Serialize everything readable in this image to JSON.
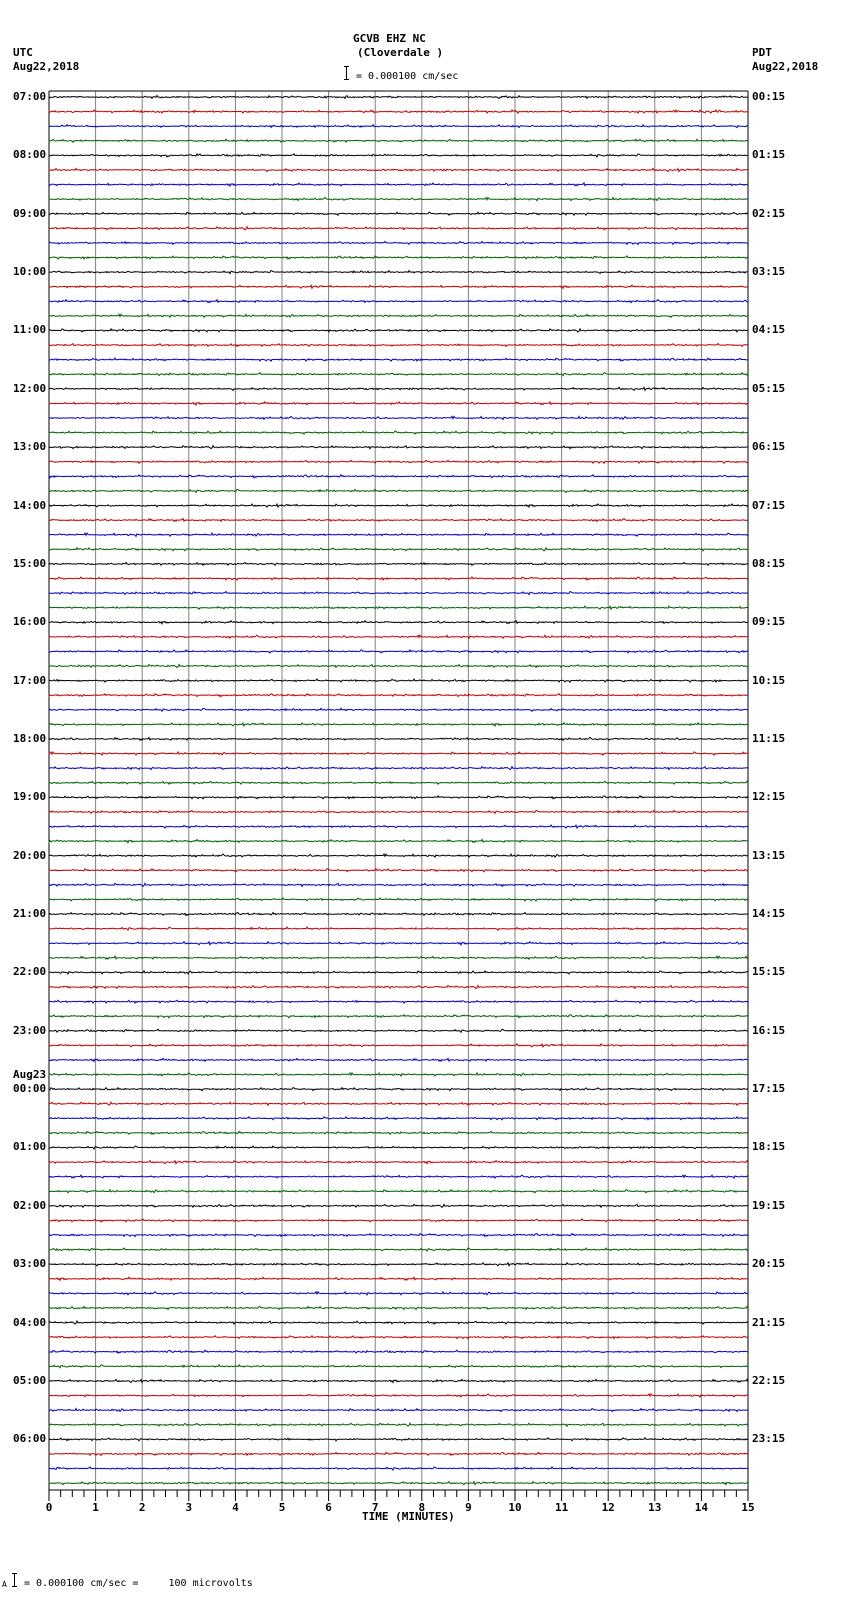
{
  "header": {
    "station": "GCVB EHZ NC",
    "location": "(Cloverdale )",
    "scale_text": "= 0.000100 cm/sec",
    "left_tz": "UTC",
    "left_date": "Aug22,2018",
    "right_tz": "PDT",
    "right_date": "Aug22,2018"
  },
  "footer": {
    "scale_text": "= 0.000100 cm/sec =     100 microvolts",
    "prefix": "A"
  },
  "chart_data": {
    "type": "line",
    "title": "GCVB EHZ NC (Cloverdale )",
    "subtitle": "Helicorder seismogram, 24 hours, 15-minute lines",
    "xlabel": "TIME (MINUTES)",
    "ylabel": "",
    "xlim": [
      0,
      15
    ],
    "x_ticks": [
      0,
      1,
      2,
      3,
      4,
      5,
      6,
      7,
      8,
      9,
      10,
      11,
      12,
      13,
      14,
      15
    ],
    "minor_ticks_per_minute": 4,
    "grid": true,
    "trace_colors": [
      "#000000",
      "#c00000",
      "#0000c0",
      "#006000"
    ],
    "traces_per_hour": 4,
    "amplitude_scale": "0.000100 cm/sec = 100 microvolts",
    "left_labels": [
      {
        "row": 0,
        "text": "07:00"
      },
      {
        "row": 4,
        "text": "08:00"
      },
      {
        "row": 8,
        "text": "09:00"
      },
      {
        "row": 12,
        "text": "10:00"
      },
      {
        "row": 16,
        "text": "11:00"
      },
      {
        "row": 20,
        "text": "12:00"
      },
      {
        "row": 24,
        "text": "13:00"
      },
      {
        "row": 28,
        "text": "14:00"
      },
      {
        "row": 32,
        "text": "15:00"
      },
      {
        "row": 36,
        "text": "16:00"
      },
      {
        "row": 40,
        "text": "17:00"
      },
      {
        "row": 44,
        "text": "18:00"
      },
      {
        "row": 48,
        "text": "19:00"
      },
      {
        "row": 52,
        "text": "20:00"
      },
      {
        "row": 56,
        "text": "21:00"
      },
      {
        "row": 60,
        "text": "22:00"
      },
      {
        "row": 64,
        "text": "23:00"
      },
      {
        "row": 68,
        "text": "00:00",
        "date": "Aug23"
      },
      {
        "row": 72,
        "text": "01:00"
      },
      {
        "row": 76,
        "text": "02:00"
      },
      {
        "row": 80,
        "text": "03:00"
      },
      {
        "row": 84,
        "text": "04:00"
      },
      {
        "row": 88,
        "text": "05:00"
      },
      {
        "row": 92,
        "text": "06:00"
      }
    ],
    "right_labels": [
      {
        "row": 0,
        "text": "00:15"
      },
      {
        "row": 4,
        "text": "01:15"
      },
      {
        "row": 8,
        "text": "02:15"
      },
      {
        "row": 12,
        "text": "03:15"
      },
      {
        "row": 16,
        "text": "04:15"
      },
      {
        "row": 20,
        "text": "05:15"
      },
      {
        "row": 24,
        "text": "06:15"
      },
      {
        "row": 28,
        "text": "07:15"
      },
      {
        "row": 32,
        "text": "08:15"
      },
      {
        "row": 36,
        "text": "09:15"
      },
      {
        "row": 40,
        "text": "10:15"
      },
      {
        "row": 44,
        "text": "11:15"
      },
      {
        "row": 48,
        "text": "12:15"
      },
      {
        "row": 52,
        "text": "13:15"
      },
      {
        "row": 56,
        "text": "14:15"
      },
      {
        "row": 60,
        "text": "15:15"
      },
      {
        "row": 64,
        "text": "16:15"
      },
      {
        "row": 68,
        "text": "17:15"
      },
      {
        "row": 72,
        "text": "18:15"
      },
      {
        "row": 76,
        "text": "19:15"
      },
      {
        "row": 80,
        "text": "20:15"
      },
      {
        "row": 84,
        "text": "21:15"
      },
      {
        "row": 88,
        "text": "22:15"
      },
      {
        "row": 92,
        "text": "23:15"
      }
    ],
    "num_traces": 96,
    "notes": "All traces show low-amplitude background noise; no significant events visible."
  }
}
